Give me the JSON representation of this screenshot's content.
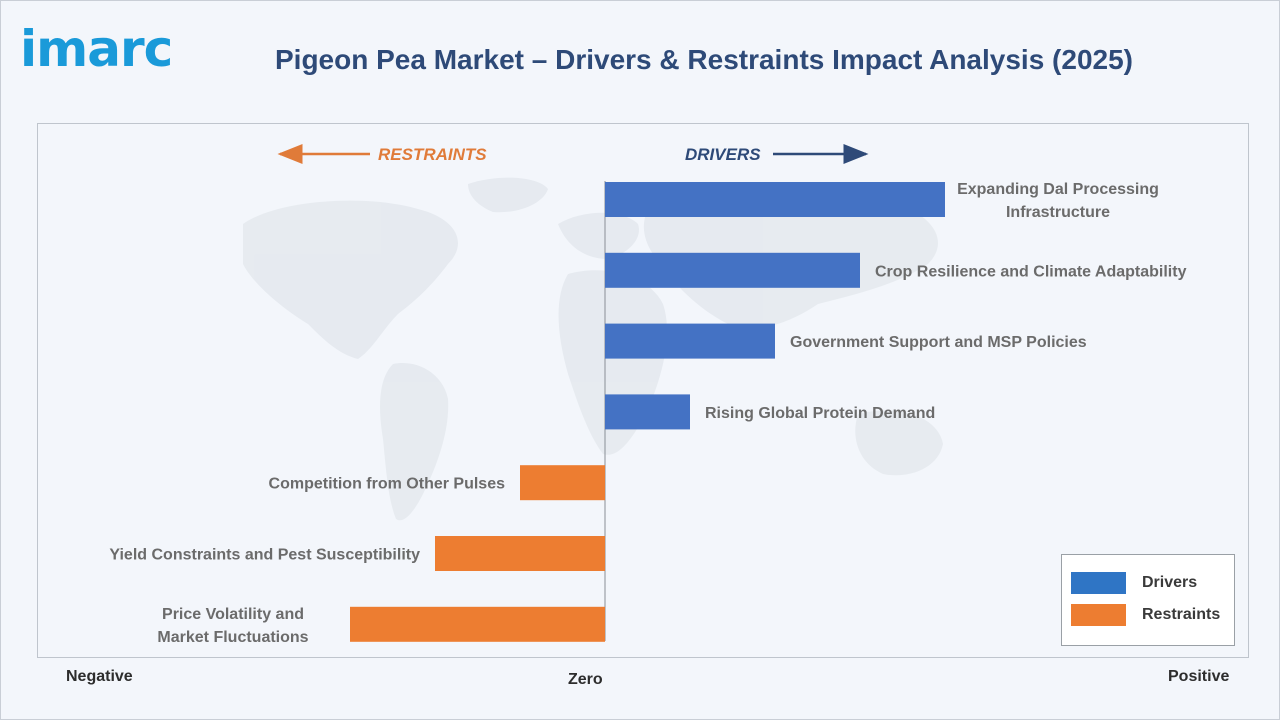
{
  "header": {
    "logo_text": "imarc",
    "title": "Pigeon Pea Market – Drivers & Restraints Impact Analysis (2025)"
  },
  "axis_words": {
    "negative": "Negative",
    "zero": "Zero",
    "positive": "Positive"
  },
  "direction_labels": {
    "restraints": "RESTRAINTS",
    "drivers": "DRIVERS"
  },
  "colors": {
    "drivers": "#4472c4",
    "restraints": "#ed7d31",
    "restraints_arrow": "#e07b39",
    "drivers_arrow": "#2e4a78",
    "title": "#2e4a78",
    "logo": "#1a9ad9"
  },
  "legend": {
    "items": [
      {
        "label": "Drivers",
        "color": "#2f75c5"
      },
      {
        "label": "Restraints",
        "color": "#ed7d31"
      }
    ]
  },
  "chart_data": {
    "type": "bar",
    "orientation": "horizontal",
    "title": "Pigeon Pea Market – Drivers & Restraints Impact Analysis (2025)",
    "xlabel": "",
    "ylabel": "",
    "x_axis_words": [
      "Negative",
      "Zero",
      "Positive"
    ],
    "categories": [
      "Expanding Dal Processing Infrastructure",
      "Crop Resilience and Climate Adaptability",
      "Government Support and MSP Policies",
      "Rising Global Protein Demand",
      "Competition from Other Pulses",
      "Yield Constraints and Pest Susceptibility",
      "Price Volatility and Market Fluctuations"
    ],
    "series": [
      {
        "name": "Drivers",
        "values": [
          4,
          3,
          2,
          1,
          null,
          null,
          null
        ]
      },
      {
        "name": "Restraints",
        "values": [
          null,
          null,
          null,
          null,
          -1,
          -2,
          -3
        ]
      }
    ],
    "xlim": [
      -7,
      7
    ],
    "grid": false,
    "legend_position": "bottom-right"
  }
}
